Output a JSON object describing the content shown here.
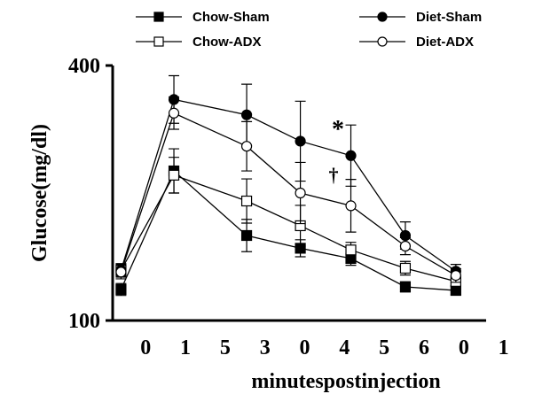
{
  "chart_data": {
    "type": "line",
    "x_label": "minutespostinjection",
    "y_label": "Glucose(mg/dl)",
    "x": [
      -0.62,
      0.71,
      2.54,
      3.89,
      5.16,
      6.53,
      7.8
    ],
    "xlim": [
      -0.83,
      9.9
    ],
    "xticks": [
      {
        "value": 0,
        "label": "0"
      },
      {
        "value": 1,
        "label": "1"
      },
      {
        "value": 2,
        "label": "5"
      },
      {
        "value": 3,
        "label": "3"
      },
      {
        "value": 4,
        "label": "0"
      },
      {
        "value": 5,
        "label": "4"
      },
      {
        "value": 6,
        "label": "5"
      },
      {
        "value": 7,
        "label": "6"
      },
      {
        "value": 8,
        "label": "0"
      },
      {
        "value": 9,
        "label": "1"
      }
    ],
    "ylim": [
      100,
      400
    ],
    "yticks": [
      100,
      400
    ],
    "series": [
      {
        "name": "Chow-Sham",
        "color": "#000000",
        "marker": "square",
        "filled": true,
        "values": [
          136.5,
          276,
          200,
          185,
          173,
          139.6,
          135.4
        ],
        "errors": [
          7,
          26,
          19,
          10,
          8,
          6,
          5
        ]
      },
      {
        "name": "Chow-ADX",
        "color": "#000000",
        "marker": "square",
        "filled": false,
        "values": [
          159,
          271,
          240.6,
          211.5,
          183,
          161.5,
          146
        ],
        "errors": [
          7,
          21,
          26,
          24,
          9,
          8,
          6
        ]
      },
      {
        "name": "Diet-Sham",
        "color": "#000000",
        "marker": "circle",
        "filled": true,
        "values": [
          159,
          360,
          342,
          311,
          294,
          200,
          158
        ],
        "errors": [
          8,
          28,
          36,
          47,
          36,
          16,
          8
        ]
      },
      {
        "name": "Diet-ADX",
        "color": "#000000",
        "marker": "circle",
        "filled": false,
        "values": [
          157,
          344,
          305,
          250,
          235,
          187.5,
          153
        ],
        "errors": [
          8,
          19,
          29,
          36,
          31,
          10,
          8
        ]
      }
    ],
    "annotations": [
      "*",
      "†"
    ]
  }
}
